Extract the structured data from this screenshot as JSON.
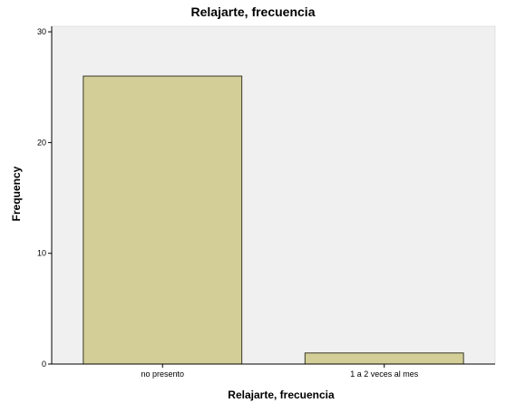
{
  "chart_data": {
    "type": "bar",
    "title": "Relajarte, frecuencia",
    "xlabel": "Relajarte, frecuencia",
    "ylabel": "Frequency",
    "categories": [
      "no presento",
      "1 a 2 veces al mes"
    ],
    "values": [
      26,
      1
    ],
    "ylim": [
      0,
      30.5
    ],
    "yticks": [
      0,
      10,
      20,
      30
    ],
    "grid": false,
    "colors": {
      "bar_fill": "#D3CE97",
      "bar_stroke": "#3a3a2a",
      "plot_background": "#F0F0F0",
      "axis": "#000000"
    }
  }
}
